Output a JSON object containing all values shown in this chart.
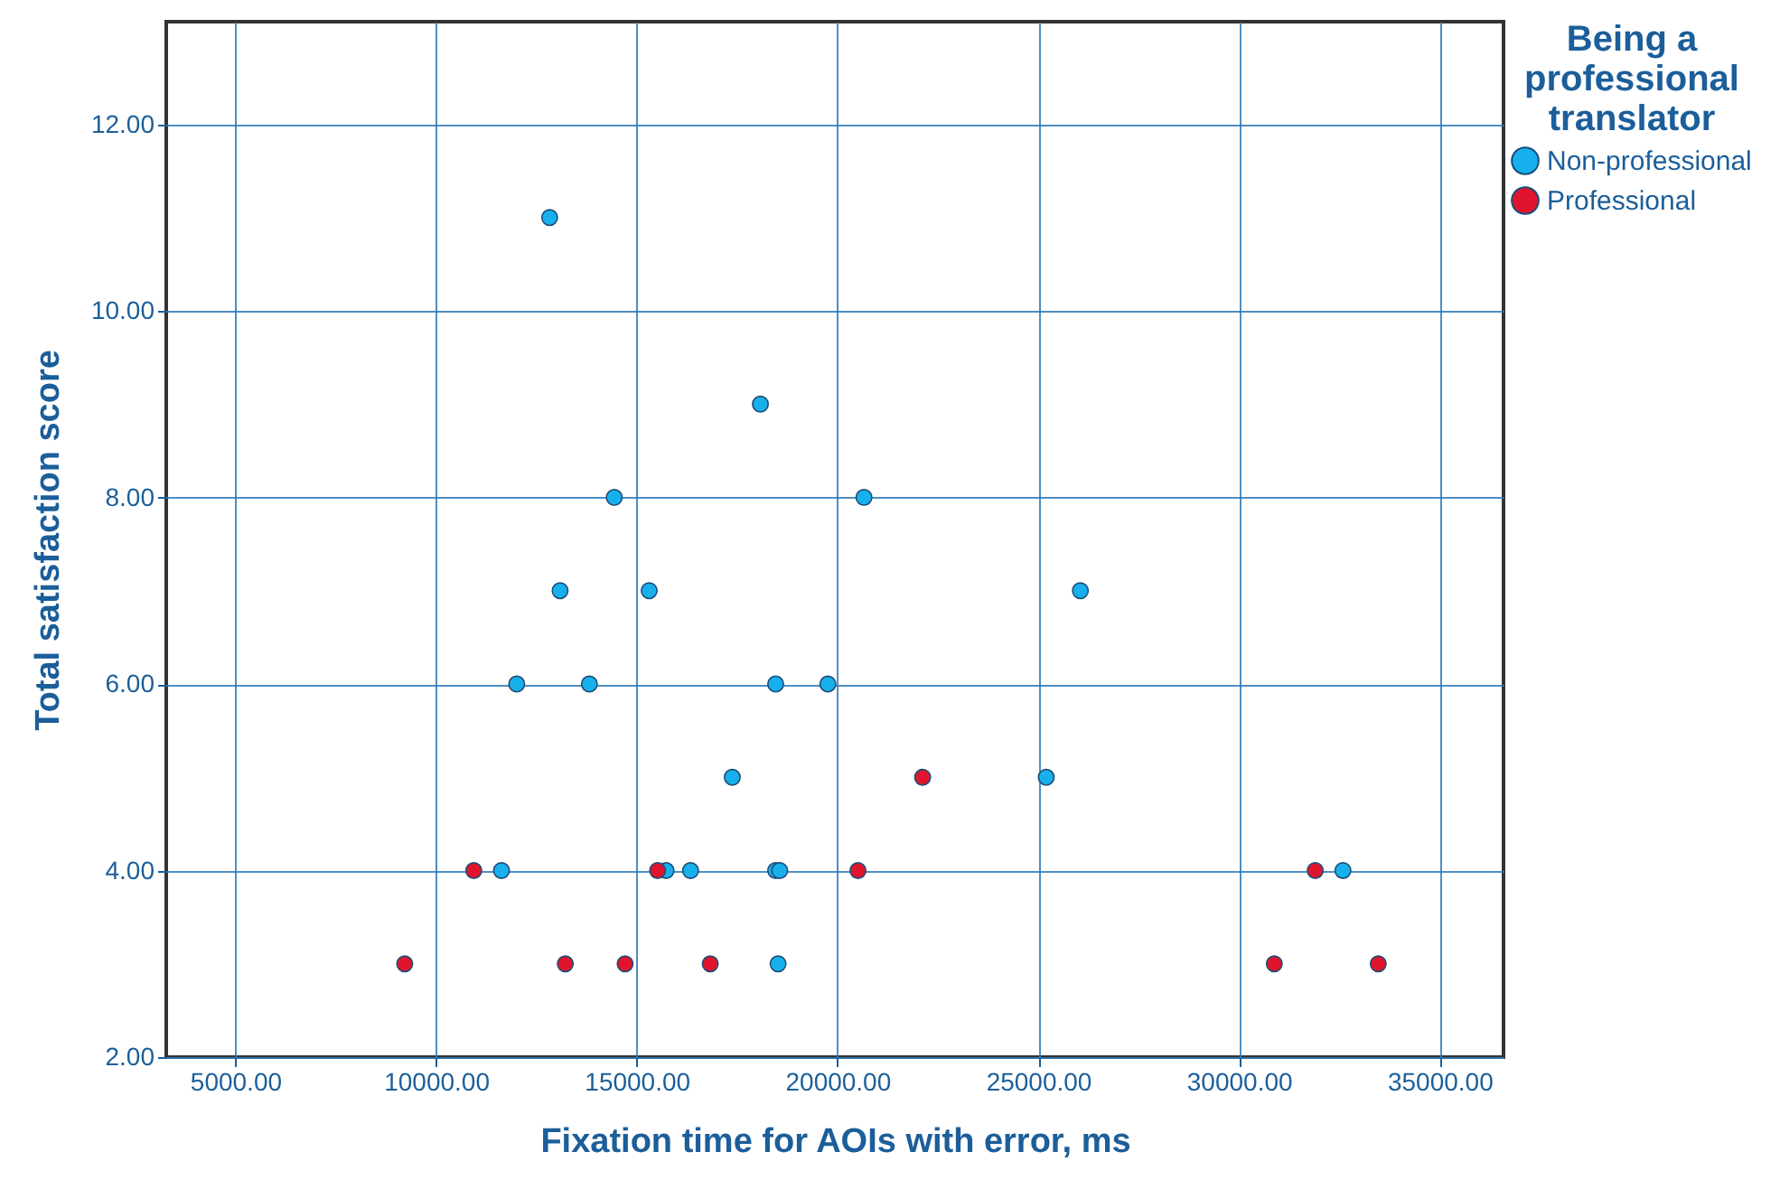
{
  "chart_data": {
    "type": "scatter",
    "xlabel": "Fixation time for AOIs with error, ms",
    "ylabel": "Total satisfaction score",
    "legend_title": "Being a professional translator",
    "legend": "top right",
    "grid": true,
    "marker": "circle",
    "xlim": [
      3280,
      36590
    ],
    "ylim": [
      2,
      13.1
    ],
    "xticks": [
      {
        "value": 5000,
        "label": "5000.00"
      },
      {
        "value": 10000,
        "label": "10000.00"
      },
      {
        "value": 15000,
        "label": "15000.00"
      },
      {
        "value": 20000,
        "label": "20000.00"
      },
      {
        "value": 25000,
        "label": "25000.00"
      },
      {
        "value": 30000,
        "label": "30000.00"
      },
      {
        "value": 35000,
        "label": "35000.00"
      }
    ],
    "yticks": [
      {
        "value": 2,
        "label": "2.00"
      },
      {
        "value": 4,
        "label": "4.00"
      },
      {
        "value": 6,
        "label": "6.00"
      },
      {
        "value": 8,
        "label": "8.00"
      },
      {
        "value": 10,
        "label": "10.00"
      },
      {
        "value": 12,
        "label": "12.00"
      }
    ],
    "series": [
      {
        "name": "Non-professional",
        "color": "#17b0ec",
        "x": [
          12830,
          18080,
          14440,
          20660,
          13090,
          15310,
          26050,
          12010,
          13820,
          18460,
          19760,
          17380,
          25200,
          11630,
          15730,
          16340,
          18460,
          18560,
          32590,
          18520
        ],
        "values": [
          11,
          9,
          8,
          8,
          7,
          7,
          7,
          6,
          6,
          6,
          6,
          5,
          5,
          4,
          4,
          4,
          4,
          4,
          4,
          3
        ]
      },
      {
        "name": "Professional",
        "color": "#e0152d",
        "x": [
          22120,
          10940,
          15520,
          20510,
          31900,
          9220,
          13220,
          14710,
          16830,
          30880,
          33470
        ],
        "values": [
          5,
          4,
          4,
          4,
          4,
          3,
          3,
          3,
          3,
          3,
          3
        ]
      }
    ]
  }
}
